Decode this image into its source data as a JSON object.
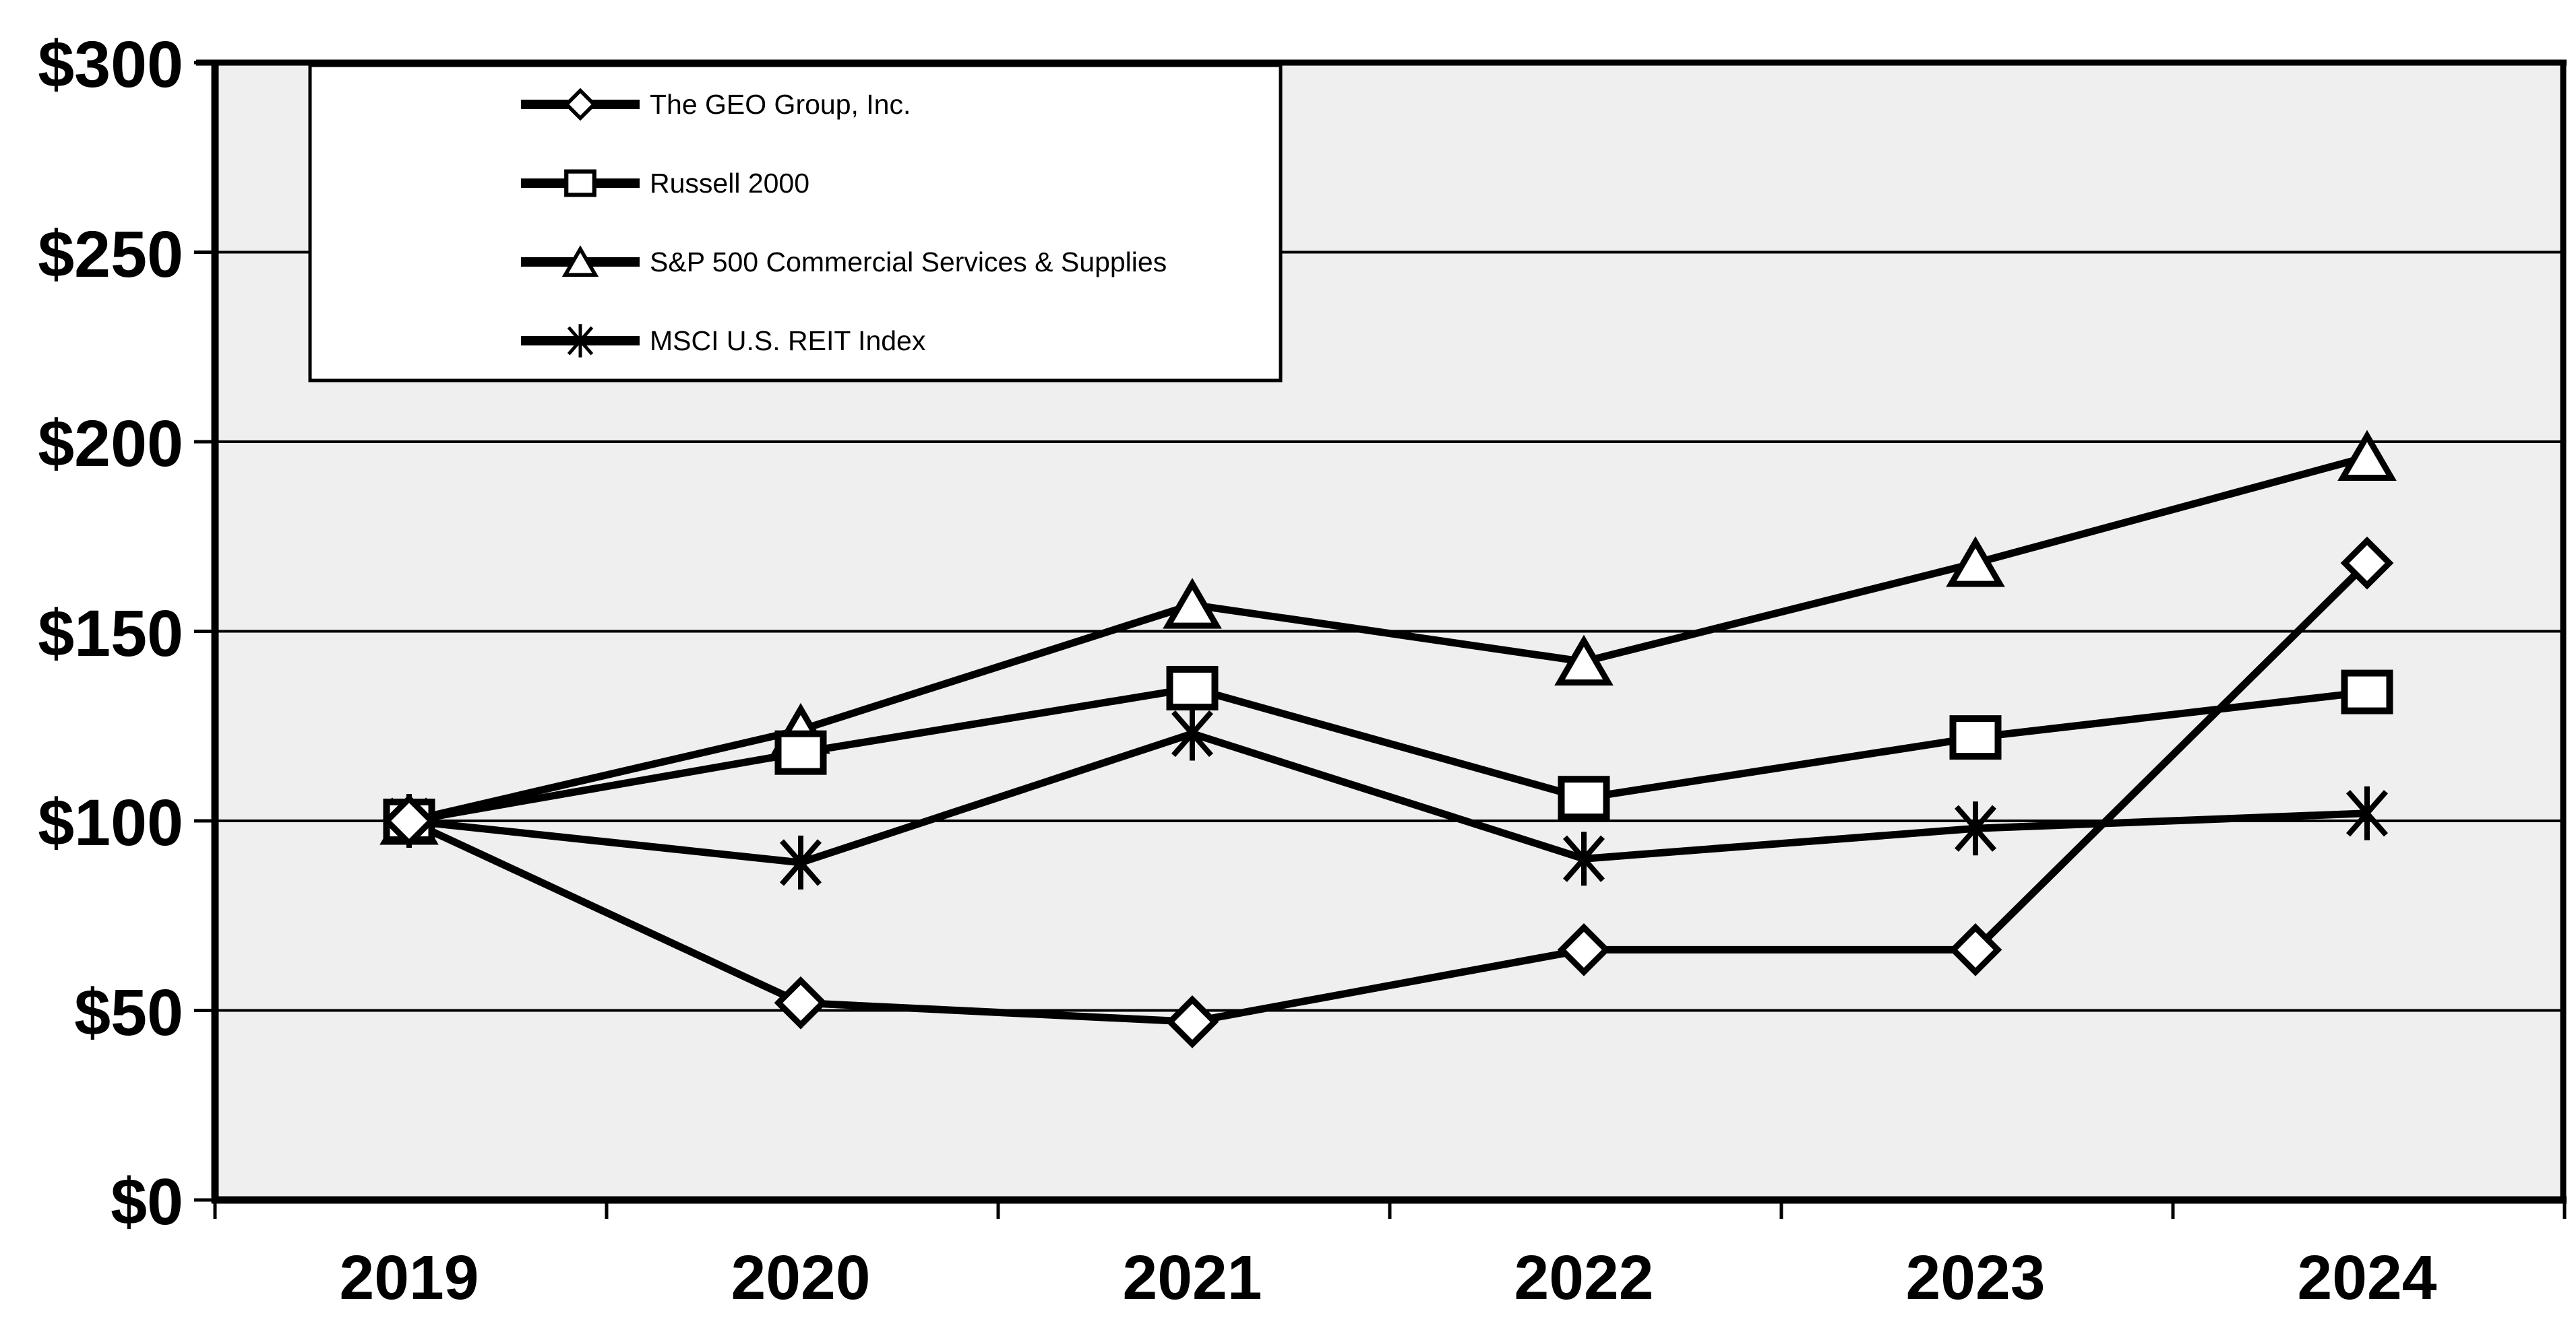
{
  "chart_data": {
    "type": "line",
    "title": "",
    "categories": [
      "2019",
      "2020",
      "2021",
      "2022",
      "2023",
      "2024"
    ],
    "series": [
      {
        "name": "The GEO Group, Inc.",
        "marker": "diamond",
        "values": [
          100,
          52,
          47,
          66,
          66,
          168
        ]
      },
      {
        "name": "Russell 2000",
        "marker": "square",
        "values": [
          100,
          118,
          135,
          106,
          122,
          134
        ]
      },
      {
        "name": "S&P 500 Commercial Services & Supplies",
        "marker": "triangle",
        "values": [
          100,
          124,
          157,
          142,
          168,
          196
        ]
      },
      {
        "name": "MSCI U.S. REIT Index",
        "marker": "asterisk",
        "values": [
          100,
          89,
          123,
          90,
          98,
          102
        ]
      }
    ],
    "ylim": [
      0,
      300
    ],
    "ytick_step": 50,
    "ytick_labels": [
      "$0",
      "$50",
      "$100",
      "$150",
      "$200",
      "$250",
      "$300"
    ],
    "grid": true,
    "legend_position": "top-left",
    "plot_bg": "#efefef",
    "line_color": "#000000",
    "marker_fill": "#ffffff"
  }
}
